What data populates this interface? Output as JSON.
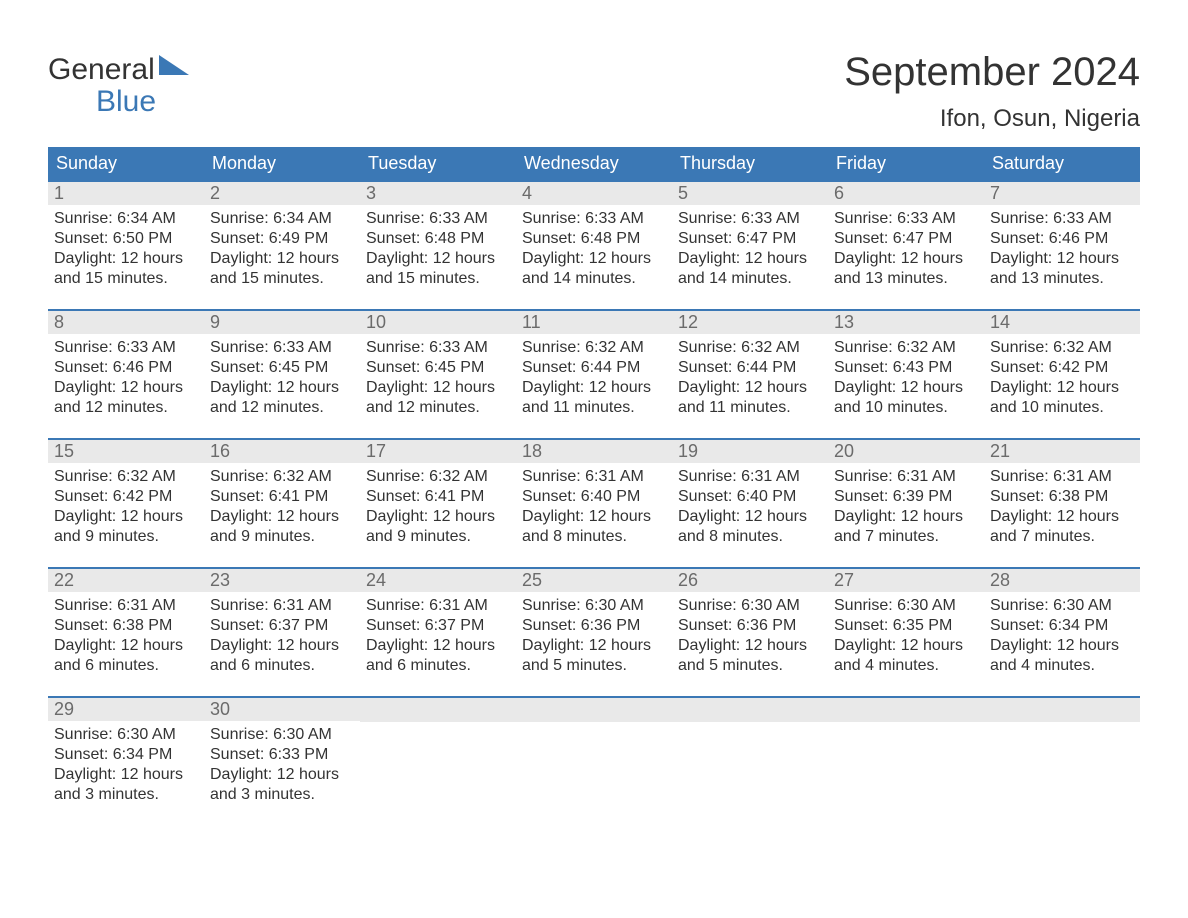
{
  "brand": {
    "top": "General",
    "bottom": "Blue",
    "accent": "#3b78b5"
  },
  "title": "September 2024",
  "location": "Ifon, Osun, Nigeria",
  "colors": {
    "header_bg": "#3b78b5",
    "header_text": "#ffffff",
    "band_bg": "#e9e9e9",
    "band_text": "#6b6b6b",
    "body_text": "#333333",
    "page_bg": "#ffffff"
  },
  "weekdays": [
    "Sunday",
    "Monday",
    "Tuesday",
    "Wednesday",
    "Thursday",
    "Friday",
    "Saturday"
  ],
  "weeks": [
    [
      {
        "n": "1",
        "sunrise": "Sunrise: 6:34 AM",
        "sunset": "Sunset: 6:50 PM",
        "daylight": "Daylight: 12 hours and 15 minutes."
      },
      {
        "n": "2",
        "sunrise": "Sunrise: 6:34 AM",
        "sunset": "Sunset: 6:49 PM",
        "daylight": "Daylight: 12 hours and 15 minutes."
      },
      {
        "n": "3",
        "sunrise": "Sunrise: 6:33 AM",
        "sunset": "Sunset: 6:48 PM",
        "daylight": "Daylight: 12 hours and 15 minutes."
      },
      {
        "n": "4",
        "sunrise": "Sunrise: 6:33 AM",
        "sunset": "Sunset: 6:48 PM",
        "daylight": "Daylight: 12 hours and 14 minutes."
      },
      {
        "n": "5",
        "sunrise": "Sunrise: 6:33 AM",
        "sunset": "Sunset: 6:47 PM",
        "daylight": "Daylight: 12 hours and 14 minutes."
      },
      {
        "n": "6",
        "sunrise": "Sunrise: 6:33 AM",
        "sunset": "Sunset: 6:47 PM",
        "daylight": "Daylight: 12 hours and 13 minutes."
      },
      {
        "n": "7",
        "sunrise": "Sunrise: 6:33 AM",
        "sunset": "Sunset: 6:46 PM",
        "daylight": "Daylight: 12 hours and 13 minutes."
      }
    ],
    [
      {
        "n": "8",
        "sunrise": "Sunrise: 6:33 AM",
        "sunset": "Sunset: 6:46 PM",
        "daylight": "Daylight: 12 hours and 12 minutes."
      },
      {
        "n": "9",
        "sunrise": "Sunrise: 6:33 AM",
        "sunset": "Sunset: 6:45 PM",
        "daylight": "Daylight: 12 hours and 12 minutes."
      },
      {
        "n": "10",
        "sunrise": "Sunrise: 6:33 AM",
        "sunset": "Sunset: 6:45 PM",
        "daylight": "Daylight: 12 hours and 12 minutes."
      },
      {
        "n": "11",
        "sunrise": "Sunrise: 6:32 AM",
        "sunset": "Sunset: 6:44 PM",
        "daylight": "Daylight: 12 hours and 11 minutes."
      },
      {
        "n": "12",
        "sunrise": "Sunrise: 6:32 AM",
        "sunset": "Sunset: 6:44 PM",
        "daylight": "Daylight: 12 hours and 11 minutes."
      },
      {
        "n": "13",
        "sunrise": "Sunrise: 6:32 AM",
        "sunset": "Sunset: 6:43 PM",
        "daylight": "Daylight: 12 hours and 10 minutes."
      },
      {
        "n": "14",
        "sunrise": "Sunrise: 6:32 AM",
        "sunset": "Sunset: 6:42 PM",
        "daylight": "Daylight: 12 hours and 10 minutes."
      }
    ],
    [
      {
        "n": "15",
        "sunrise": "Sunrise: 6:32 AM",
        "sunset": "Sunset: 6:42 PM",
        "daylight": "Daylight: 12 hours and 9 minutes."
      },
      {
        "n": "16",
        "sunrise": "Sunrise: 6:32 AM",
        "sunset": "Sunset: 6:41 PM",
        "daylight": "Daylight: 12 hours and 9 minutes."
      },
      {
        "n": "17",
        "sunrise": "Sunrise: 6:32 AM",
        "sunset": "Sunset: 6:41 PM",
        "daylight": "Daylight: 12 hours and 9 minutes."
      },
      {
        "n": "18",
        "sunrise": "Sunrise: 6:31 AM",
        "sunset": "Sunset: 6:40 PM",
        "daylight": "Daylight: 12 hours and 8 minutes."
      },
      {
        "n": "19",
        "sunrise": "Sunrise: 6:31 AM",
        "sunset": "Sunset: 6:40 PM",
        "daylight": "Daylight: 12 hours and 8 minutes."
      },
      {
        "n": "20",
        "sunrise": "Sunrise: 6:31 AM",
        "sunset": "Sunset: 6:39 PM",
        "daylight": "Daylight: 12 hours and 7 minutes."
      },
      {
        "n": "21",
        "sunrise": "Sunrise: 6:31 AM",
        "sunset": "Sunset: 6:38 PM",
        "daylight": "Daylight: 12 hours and 7 minutes."
      }
    ],
    [
      {
        "n": "22",
        "sunrise": "Sunrise: 6:31 AM",
        "sunset": "Sunset: 6:38 PM",
        "daylight": "Daylight: 12 hours and 6 minutes."
      },
      {
        "n": "23",
        "sunrise": "Sunrise: 6:31 AM",
        "sunset": "Sunset: 6:37 PM",
        "daylight": "Daylight: 12 hours and 6 minutes."
      },
      {
        "n": "24",
        "sunrise": "Sunrise: 6:31 AM",
        "sunset": "Sunset: 6:37 PM",
        "daylight": "Daylight: 12 hours and 6 minutes."
      },
      {
        "n": "25",
        "sunrise": "Sunrise: 6:30 AM",
        "sunset": "Sunset: 6:36 PM",
        "daylight": "Daylight: 12 hours and 5 minutes."
      },
      {
        "n": "26",
        "sunrise": "Sunrise: 6:30 AM",
        "sunset": "Sunset: 6:36 PM",
        "daylight": "Daylight: 12 hours and 5 minutes."
      },
      {
        "n": "27",
        "sunrise": "Sunrise: 6:30 AM",
        "sunset": "Sunset: 6:35 PM",
        "daylight": "Daylight: 12 hours and 4 minutes."
      },
      {
        "n": "28",
        "sunrise": "Sunrise: 6:30 AM",
        "sunset": "Sunset: 6:34 PM",
        "daylight": "Daylight: 12 hours and 4 minutes."
      }
    ],
    [
      {
        "n": "29",
        "sunrise": "Sunrise: 6:30 AM",
        "sunset": "Sunset: 6:34 PM",
        "daylight": "Daylight: 12 hours and 3 minutes."
      },
      {
        "n": "30",
        "sunrise": "Sunrise: 6:30 AM",
        "sunset": "Sunset: 6:33 PM",
        "daylight": "Daylight: 12 hours and 3 minutes."
      },
      {
        "empty": true
      },
      {
        "empty": true
      },
      {
        "empty": true
      },
      {
        "empty": true
      },
      {
        "empty": true
      }
    ]
  ]
}
